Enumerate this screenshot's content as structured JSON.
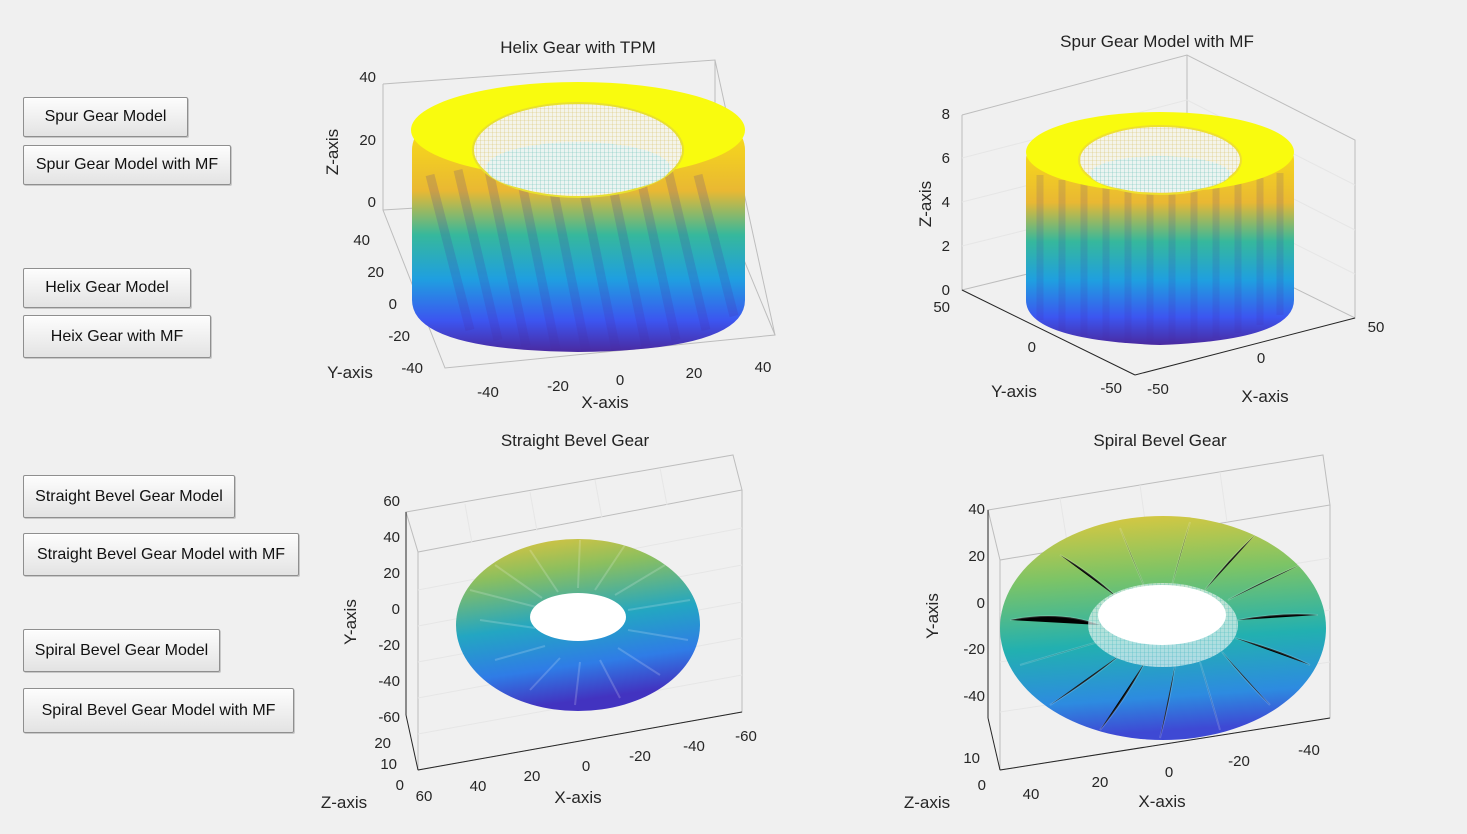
{
  "buttons": {
    "spur_model": "Spur Gear Model",
    "spur_mf": "Spur Gear Model with MF",
    "helix_model": "Helix Gear Model",
    "helix_mf": "Heix Gear with MF",
    "straight_model": "Straight Bevel Gear Model",
    "straight_mf": "Straight Bevel Gear Model with MF",
    "spiral_model": "Spiral Bevel Gear Model",
    "spiral_mf": "Spiral Bevel Gear Model with MF"
  },
  "plots": {
    "helix": {
      "title": "Helix Gear with TPM",
      "zlabel": "Z-axis",
      "ylabel": "Y-axis",
      "xlabel": "X-axis",
      "z_ticks": [
        "40",
        "20",
        "0"
      ],
      "y_ticks": [
        "40",
        "20",
        "0",
        "-20",
        "-40"
      ],
      "x_ticks": [
        "-40",
        "-20",
        "0",
        "20",
        "40"
      ]
    },
    "spur": {
      "title": "Spur Gear Model with MF",
      "zlabel": "Z-axis",
      "ylabel": "Y-axis",
      "xlabel": "X-axis",
      "z_ticks": [
        "8",
        "6",
        "4",
        "2",
        "0"
      ],
      "y_ticks": [
        "50",
        "0",
        "-50"
      ],
      "x_ticks": [
        "-50",
        "0",
        "50"
      ]
    },
    "straight": {
      "title": "Straight Bevel Gear",
      "ylabel": "Y-axis",
      "zlabel": "Z-axis",
      "xlabel": "X-axis",
      "y_ticks": [
        "60",
        "40",
        "20",
        "0",
        "-20",
        "-40",
        "-60"
      ],
      "z_ticks": [
        "20",
        "10",
        "0"
      ],
      "x_ticks": [
        "60",
        "40",
        "20",
        "0",
        "-20",
        "-40",
        "-60"
      ]
    },
    "spiral": {
      "title": "Spiral Bevel Gear",
      "ylabel": "Y-axis",
      "zlabel": "Z-axis",
      "xlabel": "X-axis",
      "y_ticks": [
        "40",
        "20",
        "0",
        "-20",
        "-40"
      ],
      "z_ticks": [
        "10",
        "0"
      ],
      "x_ticks": [
        "40",
        "20",
        "0",
        "-20",
        "-40"
      ]
    }
  },
  "colors": {
    "yellow": "#f9fb0e",
    "orange": "#f0a83a",
    "green": "#33b7a0",
    "cyan": "#1fa3d8",
    "blue": "#3e57f2",
    "navy": "#4629a8"
  }
}
